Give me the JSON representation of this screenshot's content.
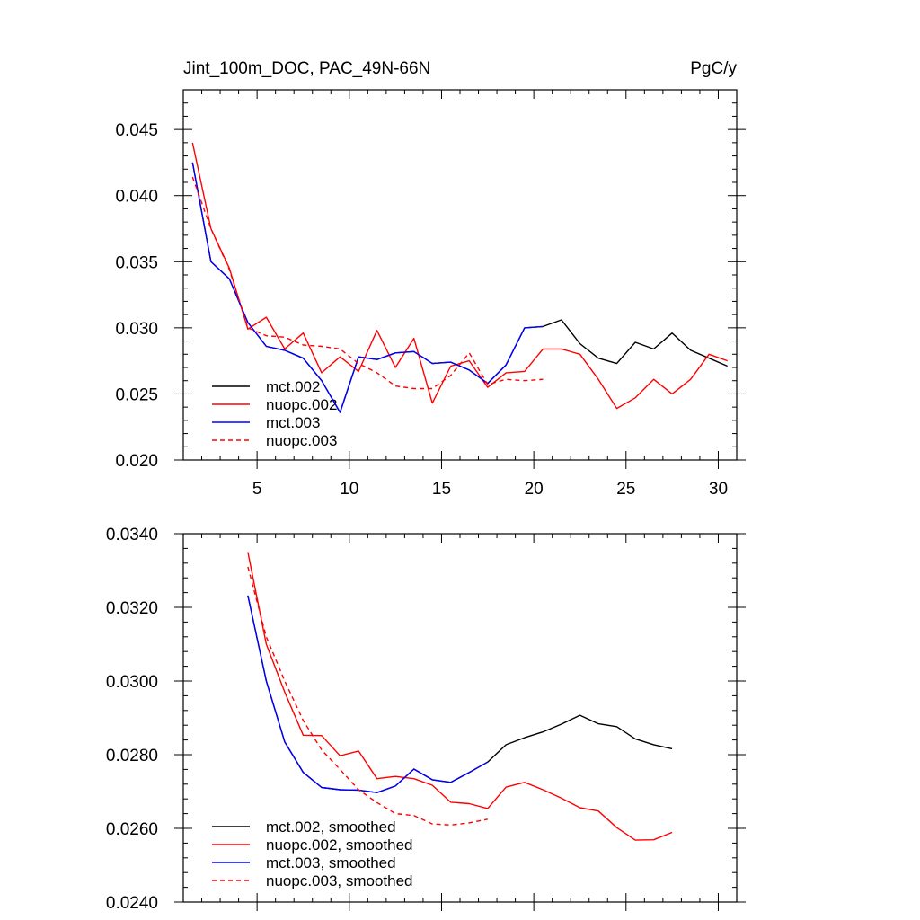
{
  "chart_data": [
    {
      "type": "line",
      "title_left": "Jint_100m_DOC, PAC_49N-66N",
      "title_right": "PgC/y",
      "xlim": [
        1,
        31
      ],
      "ylim": [
        0.02,
        0.048
      ],
      "x_ticks": [
        5,
        10,
        15,
        20,
        25,
        30
      ],
      "x_tick_labels": [
        "5",
        "10",
        "15",
        "20",
        "25",
        "30"
      ],
      "y_ticks": [
        0.02,
        0.025,
        0.03,
        0.035,
        0.04,
        0.045
      ],
      "y_tick_labels": [
        "0.020",
        "0.025",
        "0.030",
        "0.035",
        "0.040",
        "0.045"
      ],
      "legend_position": "bottom-left",
      "grid": false,
      "series": [
        {
          "name": "mct.002",
          "color": "#000000",
          "dash": "solid",
          "x": [
            1.5,
            2.5,
            3.5,
            4.5,
            5.5,
            6.5,
            7.5,
            8.5,
            9.5,
            10.5,
            11.5,
            12.5,
            13.5,
            14.5,
            15.5,
            16.5,
            17.5,
            18.5,
            19.5,
            20.5,
            21.5,
            22.5,
            23.5,
            24.5,
            25.5,
            26.5,
            27.5,
            28.5,
            29.5,
            30.5
          ],
          "y": [
            0.0425,
            0.035,
            0.0337,
            0.0304,
            0.0286,
            0.0283,
            0.0277,
            0.026,
            0.0236,
            0.0278,
            0.0276,
            0.0281,
            0.0282,
            0.0273,
            0.0274,
            0.0268,
            0.0258,
            0.0272,
            0.03,
            0.0301,
            0.0306,
            0.0288,
            0.0277,
            0.0273,
            0.0289,
            0.0284,
            0.0296,
            0.0283,
            0.0277,
            0.0271
          ]
        },
        {
          "name": "nuopc.002",
          "color": "#ff0000",
          "dash": "solid",
          "x": [
            1.5,
            2.5,
            3.5,
            4.5,
            5.5,
            6.5,
            7.5,
            8.5,
            9.5,
            10.5,
            11.5,
            12.5,
            13.5,
            14.5,
            15.5,
            16.5,
            17.5,
            18.5,
            19.5,
            20.5,
            21.5,
            22.5,
            23.5,
            24.5,
            25.5,
            26.5,
            27.5,
            28.5,
            29.5,
            30.5
          ],
          "y": [
            0.044,
            0.0375,
            0.0345,
            0.0299,
            0.0308,
            0.0284,
            0.0296,
            0.0266,
            0.0278,
            0.0267,
            0.0298,
            0.027,
            0.0292,
            0.0243,
            0.0271,
            0.0275,
            0.0255,
            0.0266,
            0.0267,
            0.0284,
            0.0284,
            0.028,
            0.0261,
            0.0239,
            0.0247,
            0.0261,
            0.025,
            0.0261,
            0.028,
            0.0275
          ]
        },
        {
          "name": "mct.003",
          "color": "#0000ff",
          "dash": "solid",
          "x": [
            1.5,
            2.5,
            3.5,
            4.5,
            5.5,
            6.5,
            7.5,
            8.5,
            9.5,
            10.5,
            11.5,
            12.5,
            13.5,
            14.5,
            15.5,
            16.5,
            17.5,
            18.5,
            19.5,
            20.5
          ],
          "y": [
            0.0425,
            0.035,
            0.0337,
            0.0304,
            0.0286,
            0.0283,
            0.0277,
            0.026,
            0.0236,
            0.0278,
            0.0276,
            0.0281,
            0.0282,
            0.0273,
            0.0274,
            0.0268,
            0.0258,
            0.0272,
            0.03,
            0.0301
          ]
        },
        {
          "name": "nuopc.003",
          "color": "#ff0000",
          "dash": "dashed",
          "x": [
            1.5,
            2.5,
            3.5,
            4.5,
            5.5,
            6.5,
            7.5,
            8.5,
            9.5,
            10.5,
            11.5,
            12.5,
            13.5,
            14.5,
            15.5,
            16.5,
            17.5,
            18.5,
            19.5,
            20.5
          ],
          "y": [
            0.0414,
            0.0375,
            0.0344,
            0.03,
            0.0294,
            0.0293,
            0.0287,
            0.0286,
            0.0284,
            0.0273,
            0.0266,
            0.0256,
            0.0254,
            0.0254,
            0.0264,
            0.0281,
            0.0257,
            0.0261,
            0.026,
            0.0261
          ]
        }
      ]
    },
    {
      "type": "line",
      "xlim": [
        1,
        31
      ],
      "ylim": [
        0.024,
        0.034
      ],
      "x_ticks": [
        5,
        10,
        15,
        20,
        25,
        30
      ],
      "x_tick_labels": [],
      "y_ticks": [
        0.024,
        0.026,
        0.028,
        0.03,
        0.032,
        0.034
      ],
      "y_tick_labels": [
        "0.0240",
        "0.0260",
        "0.0280",
        "0.0300",
        "0.0320",
        "0.0340"
      ],
      "legend_position": "bottom-left",
      "grid": false,
      "series": [
        {
          "name": "mct.002, smoothed",
          "color": "#000000",
          "dash": "solid",
          "x": [
            4.5,
            5.5,
            6.5,
            7.5,
            8.5,
            9.5,
            10.5,
            11.5,
            12.5,
            13.5,
            14.5,
            15.5,
            16.5,
            17.5,
            18.5,
            19.5,
            20.5,
            21.5,
            22.5,
            23.5,
            24.5,
            25.5,
            26.5,
            27.5
          ],
          "y": [
            0.03232,
            0.03,
            0.02835,
            0.02752,
            0.02711,
            0.02705,
            0.02704,
            0.02697,
            0.02715,
            0.02761,
            0.02732,
            0.02725,
            0.02752,
            0.0278,
            0.02827,
            0.02846,
            0.02862,
            0.02883,
            0.02907,
            0.02884,
            0.02876,
            0.02843,
            0.02827,
            0.02816
          ]
        },
        {
          "name": "nuopc.002, smoothed",
          "color": "#ff0000",
          "dash": "solid",
          "x": [
            4.5,
            5.5,
            6.5,
            7.5,
            8.5,
            9.5,
            10.5,
            11.5,
            12.5,
            13.5,
            14.5,
            15.5,
            16.5,
            17.5,
            18.5,
            19.5,
            20.5,
            21.5,
            22.5,
            23.5,
            24.5,
            25.5,
            26.5,
            27.5
          ],
          "y": [
            0.0335,
            0.031,
            0.0297,
            0.02853,
            0.02852,
            0.02797,
            0.0281,
            0.02735,
            0.02741,
            0.02735,
            0.02717,
            0.02671,
            0.02667,
            0.02654,
            0.02712,
            0.02725,
            0.02705,
            0.02682,
            0.02656,
            0.02647,
            0.02602,
            0.02568,
            0.02569,
            0.02589
          ]
        },
        {
          "name": "mct.003, smoothed",
          "color": "#0000ff",
          "dash": "solid",
          "x": [
            4.5,
            5.5,
            6.5,
            7.5,
            8.5,
            9.5,
            10.5,
            11.5,
            12.5,
            13.5,
            14.5,
            15.5,
            16.5,
            17.5
          ],
          "y": [
            0.03232,
            0.03,
            0.02835,
            0.02752,
            0.02711,
            0.02705,
            0.02704,
            0.02697,
            0.02715,
            0.02761,
            0.02732,
            0.02725,
            0.02752,
            0.0278
          ]
        },
        {
          "name": "nuopc.003, smoothed",
          "color": "#ff0000",
          "dash": "dashed",
          "x": [
            4.5,
            5.5,
            6.5,
            7.5,
            8.5,
            9.5,
            10.5,
            11.5,
            12.5,
            13.5,
            14.5,
            15.5,
            16.5,
            17.5
          ],
          "y": [
            0.0331,
            0.0312,
            0.03,
            0.02893,
            0.02813,
            0.0276,
            0.02705,
            0.0267,
            0.0264,
            0.02635,
            0.02612,
            0.02609,
            0.02615,
            0.02625
          ]
        }
      ]
    }
  ]
}
